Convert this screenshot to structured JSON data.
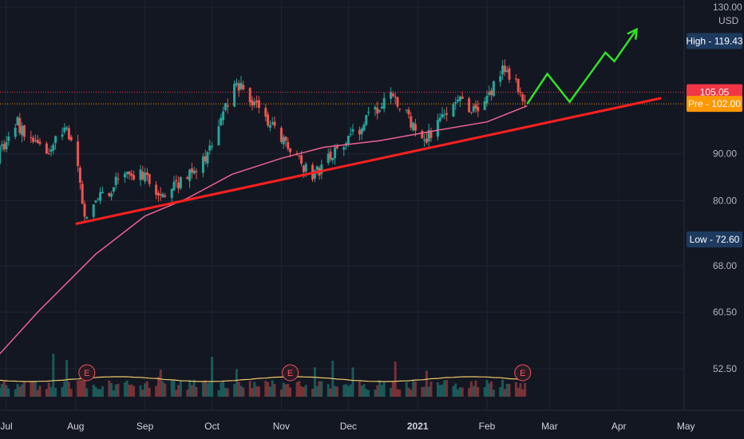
{
  "chart_data": {
    "type": "candlestick",
    "currency": "USD",
    "y_scale": "log",
    "ylim": [
      47.5,
      130
    ],
    "y_ticks": [
      "130.00",
      "90.00",
      "80.00",
      "68.00",
      "60.50",
      "52.50"
    ],
    "x_ticks": [
      {
        "label": "Jul",
        "date": "2020-07-01"
      },
      {
        "label": "Aug",
        "date": "2020-08-01"
      },
      {
        "label": "Sep",
        "date": "2020-09-01"
      },
      {
        "label": "Oct",
        "date": "2020-10-01"
      },
      {
        "label": "Nov",
        "date": "2020-11-01"
      },
      {
        "label": "Dec",
        "date": "2020-12-01"
      },
      {
        "label": "2021",
        "date": "2021-01-01",
        "bold": true
      },
      {
        "label": "Feb",
        "date": "2021-02-01"
      },
      {
        "label": "Mar",
        "date": "2021-03-01"
      },
      {
        "label": "Apr",
        "date": "2021-04-01"
      },
      {
        "label": "May",
        "date": "2021-05-01"
      }
    ],
    "price_keypoints": [
      [
        "2020-06-22",
        88
      ],
      [
        "2020-06-29",
        91
      ],
      [
        "2020-07-06",
        97
      ],
      [
        "2020-07-13",
        93
      ],
      [
        "2020-07-20",
        90
      ],
      [
        "2020-07-27",
        96
      ],
      [
        "2020-07-31",
        94
      ],
      [
        "2020-08-05",
        76
      ],
      [
        "2020-08-10",
        80
      ],
      [
        "2020-08-20",
        84
      ],
      [
        "2020-09-01",
        86
      ],
      [
        "2020-09-08",
        80
      ],
      [
        "2020-09-15",
        83
      ],
      [
        "2020-09-24",
        86
      ],
      [
        "2020-10-01",
        92
      ],
      [
        "2020-10-06",
        100
      ],
      [
        "2020-10-12",
        108
      ],
      [
        "2020-10-16",
        104
      ],
      [
        "2020-10-22",
        100
      ],
      [
        "2020-10-28",
        96
      ],
      [
        "2020-11-03",
        92
      ],
      [
        "2020-11-09",
        88
      ],
      [
        "2020-11-16",
        85
      ],
      [
        "2020-11-23",
        90
      ],
      [
        "2020-12-01",
        93
      ],
      [
        "2020-12-08",
        97
      ],
      [
        "2020-12-15",
        102
      ],
      [
        "2020-12-21",
        105
      ],
      [
        "2020-12-28",
        98
      ],
      [
        "2021-01-04",
        92
      ],
      [
        "2021-01-11",
        99
      ],
      [
        "2021-01-18",
        103
      ],
      [
        "2021-01-25",
        100
      ],
      [
        "2021-02-01",
        104
      ],
      [
        "2021-02-08",
        111
      ],
      [
        "2021-02-12",
        110
      ],
      [
        "2021-02-17",
        104
      ],
      [
        "2021-02-19",
        102
      ]
    ],
    "moving_average": [
      [
        "2020-06-22",
        52.5
      ],
      [
        "2020-07-15",
        60.5
      ],
      [
        "2020-08-10",
        70
      ],
      [
        "2020-09-01",
        77
      ],
      [
        "2020-09-20",
        80.5
      ],
      [
        "2020-10-10",
        85.5
      ],
      [
        "2020-11-01",
        89
      ],
      [
        "2020-11-20",
        91.5
      ],
      [
        "2020-12-15",
        93
      ],
      [
        "2021-01-10",
        95.5
      ],
      [
        "2021-02-01",
        97.5
      ],
      [
        "2021-02-19",
        101.5
      ]
    ],
    "trendline": {
      "start": [
        "2020-08-01",
        75.5
      ],
      "end": [
        "2021-04-20",
        103.5
      ]
    },
    "projection": [
      [
        "2021-02-19",
        102
      ],
      [
        "2021-02-28",
        110
      ],
      [
        "2021-03-10",
        102.5
      ],
      [
        "2021-03-26",
        116
      ],
      [
        "2021-03-30",
        113.5
      ],
      [
        "2021-04-09",
        123
      ]
    ],
    "earnings_dates": [
      "2020-08-06",
      "2020-11-05",
      "2021-02-17"
    ],
    "volume_bars": 220,
    "price_labels": {
      "high": {
        "text": "High - 119.43",
        "value": 119.43,
        "color": "#1e3a5f"
      },
      "last": {
        "text": "105.05",
        "value": 105.05,
        "color": "#f23645"
      },
      "pre": {
        "text": "Pre - 102.00",
        "value": 102.0,
        "color": "#ff9800"
      },
      "low": {
        "text": "Low - 72.60",
        "value": 72.6,
        "color": "#1e3a5f"
      }
    },
    "earnings_label": "E",
    "colors": {
      "background": "#131722",
      "up": "#26a69a",
      "down": "#ef5350",
      "ma": "#f06292",
      "trend": "#ff2020",
      "projection": "#33e02a",
      "grid": "#1f2431",
      "volume_ma": "#f3c96b"
    }
  }
}
